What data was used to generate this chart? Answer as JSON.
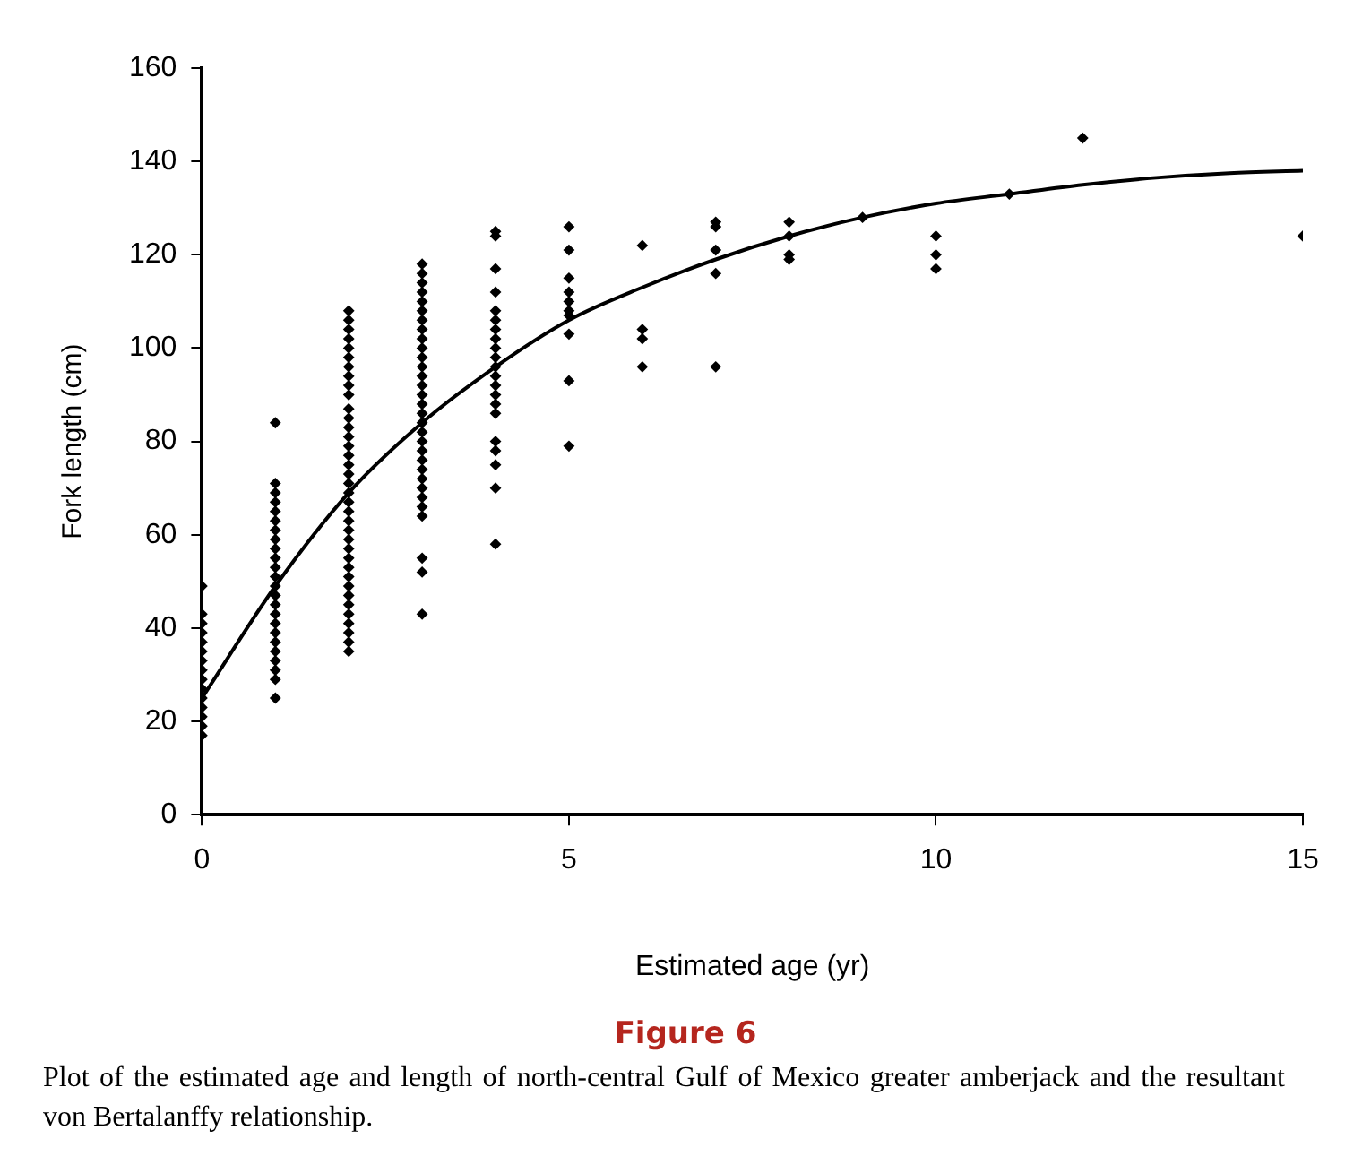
{
  "chart_data": {
    "type": "scatter",
    "title": "Figure 6",
    "annotations": [
      "Plot of the estimated age and length of north-central Gulf of Mexico greater amberjack and the resultant von Bertalanffy relationship."
    ],
    "xlabel": "Estimated age (yr)",
    "ylabel": "Fork length (cm)",
    "xlim": [
      0,
      15
    ],
    "xticks": [
      0,
      5,
      10,
      15
    ],
    "ylim": [
      0,
      160
    ],
    "yticks": [
      0,
      20,
      40,
      60,
      80,
      100,
      120,
      140,
      160
    ],
    "grid": false,
    "legend": false,
    "marker": "diamond",
    "series": [
      {
        "type": "scatter",
        "color": "#000000",
        "x": [
          0,
          0,
          0,
          0,
          0,
          0,
          0,
          0,
          0,
          0,
          0,
          0,
          0,
          0,
          0,
          1,
          1,
          1,
          1,
          1,
          1,
          1,
          1,
          1,
          1,
          1,
          1,
          1,
          1,
          1,
          1,
          1,
          1,
          1,
          1,
          1,
          1,
          1,
          1,
          2,
          2,
          2,
          2,
          2,
          2,
          2,
          2,
          2,
          2,
          2,
          2,
          2,
          2,
          2,
          2,
          2,
          2,
          2,
          2,
          2,
          2,
          2,
          2,
          2,
          2,
          2,
          2,
          2,
          2,
          2,
          2,
          2,
          2,
          2,
          2,
          2,
          3,
          3,
          3,
          3,
          3,
          3,
          3,
          3,
          3,
          3,
          3,
          3,
          3,
          3,
          3,
          3,
          3,
          3,
          3,
          3,
          3,
          3,
          3,
          3,
          3,
          3,
          3,
          3,
          3,
          3,
          3,
          4,
          4,
          4,
          4,
          4,
          4,
          4,
          4,
          4,
          4,
          4,
          4,
          4,
          4,
          4,
          4,
          4,
          4,
          4,
          4,
          4,
          5,
          5,
          5,
          5,
          5,
          5,
          5,
          5,
          5,
          5,
          6,
          6,
          6,
          6,
          7,
          7,
          7,
          7,
          7,
          8,
          8,
          8,
          8,
          9,
          10,
          10,
          10,
          11,
          12,
          15
        ],
        "values": [
          49,
          43,
          41,
          39,
          37,
          35,
          33,
          31,
          29,
          27,
          25,
          23,
          21,
          19,
          17,
          84,
          71,
          69,
          67,
          65,
          63,
          61,
          59,
          57,
          55,
          53,
          51,
          49,
          47,
          45,
          43,
          41,
          39,
          37,
          35,
          33,
          31,
          29,
          25,
          108,
          106,
          104,
          102,
          100,
          98,
          96,
          94,
          92,
          90,
          87,
          85,
          83,
          81,
          79,
          77,
          75,
          73,
          71,
          69,
          67,
          65,
          63,
          61,
          59,
          57,
          55,
          53,
          51,
          49,
          47,
          45,
          43,
          41,
          39,
          37,
          35,
          118,
          116,
          114,
          112,
          110,
          108,
          106,
          104,
          102,
          100,
          98,
          96,
          94,
          92,
          90,
          88,
          86,
          84,
          82,
          80,
          78,
          76,
          74,
          72,
          70,
          68,
          66,
          64,
          55,
          52,
          43,
          125,
          124,
          117,
          112,
          108,
          106,
          104,
          102,
          100,
          98,
          96,
          94,
          92,
          90,
          88,
          86,
          80,
          78,
          75,
          70,
          58,
          126,
          121,
          115,
          112,
          110,
          108,
          107,
          103,
          93,
          79,
          122,
          104,
          102,
          96,
          127,
          126,
          121,
          116,
          96,
          127,
          124,
          120,
          119,
          128,
          124,
          120,
          117,
          133,
          145,
          124
        ]
      },
      {
        "type": "line",
        "color": "#000000",
        "line_style": "solid",
        "marker": "none",
        "x": [
          0,
          1,
          2,
          3,
          4,
          5,
          6,
          7,
          8,
          9,
          10,
          11,
          12,
          13,
          14,
          15
        ],
        "values": [
          25,
          49,
          69,
          84,
          96,
          106,
          113,
          119,
          124,
          128,
          131,
          133,
          135,
          136.5,
          137.5,
          138
        ]
      }
    ]
  }
}
